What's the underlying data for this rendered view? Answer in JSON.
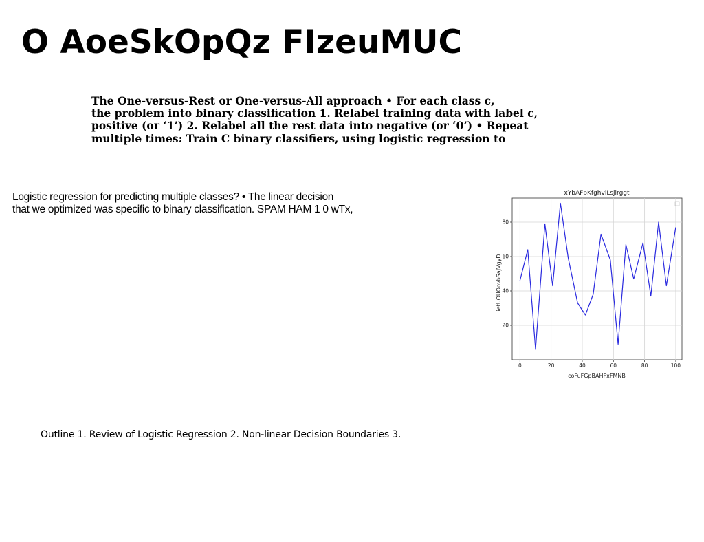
{
  "slide": {
    "title": "O AoeSkOpQz FIzeuMUC",
    "para1_lines": [
      "The One-versus-Rest or One-versus-All approach • For each class c,",
      "the problem into binary classification 1. Relabel training data with label c,",
      "positive (or ‘1’) 2. Relabel all the rest data into negative (or ‘0’) • Repeat",
      "multiple times: Train C binary classifiers, using logistic regression to"
    ],
    "para2_lines": [
      "Logistic regression for predicting multiple classes? • The linear decision",
      "that we optimized was specific to binary classification. SPAM HAM 1 0 wTx,"
    ],
    "para3": "Outline 1. Review of Logistic Regression 2. Non-linear Decision Boundaries 3."
  },
  "chart_data": {
    "type": "line",
    "title": "xYbAFpKfghvlLsjlrggt",
    "xlabel": "coFuFGpBAHFxFMNB",
    "ylabel": "ietUOUOovbSaJVgyD",
    "grid": true,
    "xlim": [
      -5,
      104
    ],
    "ylim": [
      0,
      94
    ],
    "xticks": [
      0,
      20,
      40,
      60,
      80,
      100
    ],
    "yticks": [
      20,
      40,
      60,
      80
    ],
    "line_color": "#2a2adf",
    "series": [
      {
        "x": [
          0,
          5,
          10,
          16,
          21,
          26,
          31,
          37,
          42,
          47,
          52,
          58,
          63,
          68,
          73,
          79,
          84,
          89,
          94,
          100
        ],
        "y": [
          46,
          64,
          6,
          79,
          43,
          91,
          59,
          33,
          26,
          38,
          73,
          58,
          9,
          67,
          47,
          68,
          37,
          80,
          43,
          77
        ]
      }
    ]
  }
}
